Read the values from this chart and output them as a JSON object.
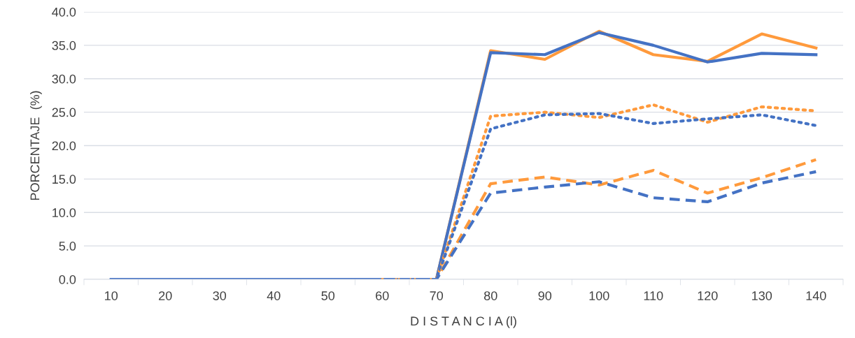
{
  "chart_data": {
    "type": "line",
    "xlabel": "D I S T A N C I A (l)",
    "ylabel": "PORCENTAJE  (%)",
    "categories": [
      "10",
      "20",
      "30",
      "40",
      "50",
      "60",
      "70",
      "80",
      "90",
      "100",
      "110",
      "120",
      "130",
      "140"
    ],
    "series": [
      {
        "color": "#ff9a3c",
        "line_style": "solid",
        "values": [
          null,
          null,
          null,
          null,
          null,
          0,
          0,
          34.2,
          32.9,
          37.1,
          33.6,
          32.6,
          36.7,
          34.6
        ]
      },
      {
        "color": "#4472c4",
        "line_style": "solid",
        "values": [
          0,
          0,
          0,
          0,
          0,
          0,
          0,
          33.9,
          33.6,
          36.9,
          35.0,
          32.5,
          33.8,
          33.6
        ]
      },
      {
        "color": "#ff9a3c",
        "line_style": "dotted",
        "values": [
          null,
          null,
          null,
          null,
          null,
          0,
          0,
          24.4,
          25.0,
          24.2,
          26.1,
          23.5,
          25.8,
          25.2
        ]
      },
      {
        "color": "#4472c4",
        "line_style": "dotted",
        "values": [
          0,
          0,
          0,
          0,
          0,
          0,
          0,
          22.5,
          24.6,
          24.8,
          23.3,
          24.0,
          24.6,
          23.0
        ]
      },
      {
        "color": "#ff9a3c",
        "line_style": "dashed",
        "values": [
          null,
          null,
          null,
          null,
          null,
          0,
          0,
          14.3,
          15.3,
          14.1,
          16.3,
          12.9,
          15.2,
          17.9
        ]
      },
      {
        "color": "#4472c4",
        "line_style": "dashed",
        "values": [
          0,
          0,
          0,
          0,
          0,
          0,
          0,
          12.9,
          13.8,
          14.6,
          12.2,
          11.6,
          14.4,
          16.1
        ]
      }
    ],
    "ylim": [
      0,
      40
    ],
    "yticks": [
      {
        "value": 0,
        "label": "0.0"
      },
      {
        "value": 5,
        "label": "5.0"
      },
      {
        "value": 10,
        "label": "10.0"
      },
      {
        "value": 15,
        "label": "15.0"
      },
      {
        "value": 20,
        "label": "20.0"
      },
      {
        "value": 25,
        "label": "25.0"
      },
      {
        "value": 30,
        "label": "30.0"
      },
      {
        "value": 35,
        "label": "35.0"
      },
      {
        "value": 40,
        "label": "40.0"
      }
    ],
    "grid": "y",
    "legend": false,
    "marker": "none"
  }
}
